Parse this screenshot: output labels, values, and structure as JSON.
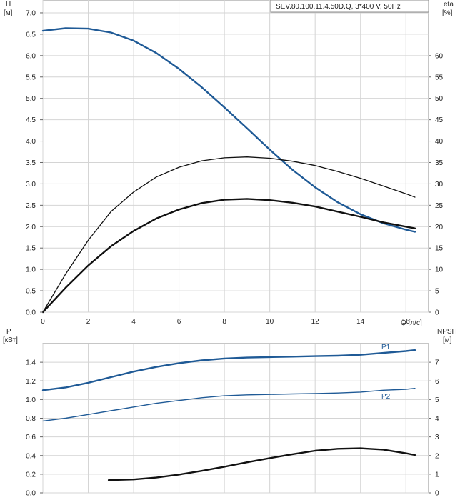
{
  "chart_data": [
    {
      "type": "line",
      "title": "SEV.80.100.11.4.50D.Q, 3*400 V, 50Hz",
      "xlabel": "Q [л/с]",
      "ylabel": "H",
      "ylabel_unit": "[м]",
      "ylabel2": "eta",
      "ylabel2_unit": "[%]",
      "xlim": [
        0,
        17
      ],
      "ylim": [
        0,
        7.3
      ],
      "y2lim": [
        0,
        73
      ],
      "grid": true,
      "xticks": [
        "0",
        "2",
        "4",
        "6",
        "8",
        "10",
        "12",
        "14",
        "16"
      ],
      "yticks": [
        "0.0",
        "0.5",
        "1.0",
        "1.5",
        "2.0",
        "2.5",
        "3.0",
        "3.5",
        "4.0",
        "4.5",
        "5.0",
        "5.5",
        "6.0",
        "6.5",
        "7.0"
      ],
      "y2ticks": [
        "0",
        "5",
        "10",
        "15",
        "20",
        "25",
        "30",
        "35",
        "40",
        "45",
        "50",
        "55",
        "60"
      ],
      "series": [
        {
          "axis": "y",
          "color": "#1f5a96",
          "width": 2.4,
          "x": [
            0,
            1,
            2,
            3,
            4,
            5,
            6,
            7,
            8,
            9,
            10,
            11,
            12,
            13,
            14,
            15,
            16,
            16.4
          ],
          "values": [
            6.58,
            6.64,
            6.63,
            6.54,
            6.35,
            6.06,
            5.69,
            5.26,
            4.79,
            4.3,
            3.8,
            3.33,
            2.92,
            2.57,
            2.29,
            2.08,
            1.93,
            1.88
          ]
        },
        {
          "axis": "y2",
          "color": "#111111",
          "width": 1.3,
          "x": [
            0,
            1,
            2,
            3,
            4,
            5,
            6,
            7,
            8,
            9,
            10,
            11,
            12,
            13,
            14,
            15,
            16,
            16.4
          ],
          "values": [
            0,
            8.9,
            16.8,
            23.5,
            28.1,
            31.6,
            33.9,
            35.4,
            36.1,
            36.3,
            36.0,
            35.3,
            34.3,
            32.9,
            31.3,
            29.5,
            27.7,
            26.9
          ]
        },
        {
          "axis": "y2",
          "color": "#111111",
          "width": 2.4,
          "x": [
            0,
            1,
            2,
            3,
            4,
            5,
            6,
            7,
            8,
            9,
            10,
            11,
            12,
            13,
            14,
            15,
            16,
            16.4
          ],
          "values": [
            0,
            5.7,
            10.9,
            15.4,
            19.0,
            21.9,
            24.0,
            25.5,
            26.3,
            26.5,
            26.2,
            25.6,
            24.7,
            23.5,
            22.3,
            21.0,
            20.0,
            19.6
          ]
        }
      ]
    },
    {
      "type": "line",
      "ylabel": "P",
      "ylabel_unit": "[кВт]",
      "ylabel2": "NPSH",
      "ylabel2_unit": "[м]",
      "xlim": [
        0,
        17
      ],
      "ylim": [
        0,
        1.6
      ],
      "y2lim": [
        0,
        8
      ],
      "grid": true,
      "yticks": [
        "0.0",
        "0.2",
        "0.4",
        "0.6",
        "0.8",
        "1.0",
        "1.2",
        "1.4"
      ],
      "y2ticks": [
        "0",
        "1",
        "2",
        "3",
        "4",
        "5",
        "6",
        "7"
      ],
      "series": [
        {
          "name": "P1",
          "axis": "y",
          "color": "#1f5a96",
          "width": 2.4,
          "x": [
            0,
            1,
            2,
            3,
            4,
            5,
            6,
            7,
            8,
            9,
            10,
            11,
            12,
            13,
            14,
            15,
            16,
            16.4
          ],
          "values": [
            1.1,
            1.13,
            1.18,
            1.24,
            1.3,
            1.35,
            1.39,
            1.42,
            1.44,
            1.45,
            1.455,
            1.46,
            1.465,
            1.47,
            1.48,
            1.5,
            1.52,
            1.53
          ]
        },
        {
          "name": "P2",
          "axis": "y",
          "color": "#1f5a96",
          "width": 1.4,
          "x": [
            0,
            1,
            2,
            3,
            4,
            5,
            6,
            7,
            8,
            9,
            10,
            11,
            12,
            13,
            14,
            15,
            16,
            16.4
          ],
          "values": [
            0.77,
            0.8,
            0.84,
            0.88,
            0.92,
            0.96,
            0.99,
            1.02,
            1.04,
            1.05,
            1.055,
            1.06,
            1.065,
            1.07,
            1.08,
            1.1,
            1.11,
            1.12
          ]
        },
        {
          "axis": "y2",
          "color": "#111111",
          "width": 2.4,
          "x": [
            2.9,
            4,
            5,
            6,
            7,
            8,
            9,
            10,
            11,
            12,
            13,
            14,
            15,
            16,
            16.4
          ],
          "values": [
            0.68,
            0.72,
            0.82,
            0.98,
            1.18,
            1.4,
            1.64,
            1.86,
            2.07,
            2.26,
            2.36,
            2.39,
            2.32,
            2.12,
            2.03
          ]
        }
      ]
    }
  ]
}
